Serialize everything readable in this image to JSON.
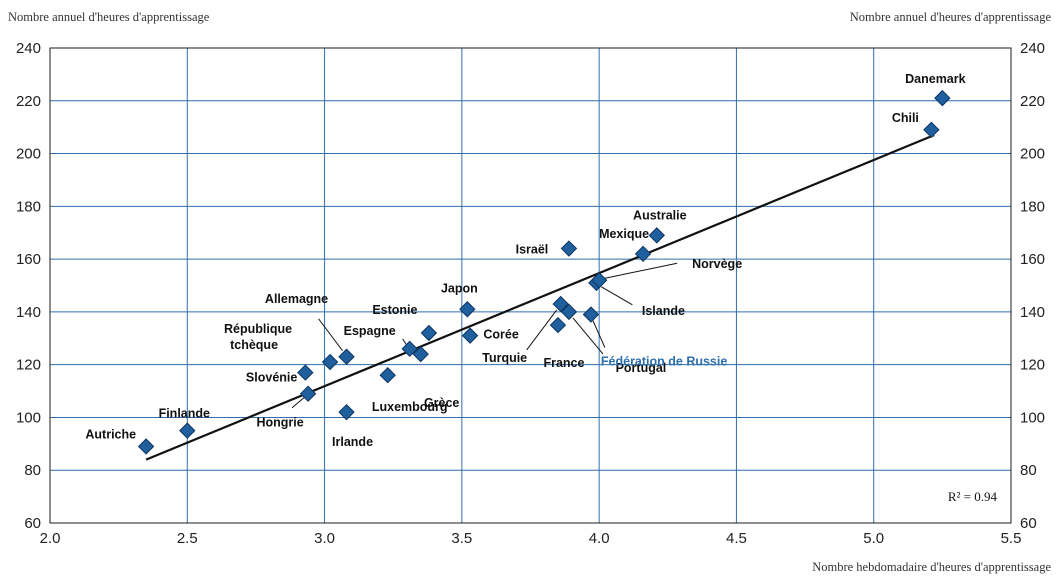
{
  "chart_data": {
    "type": "scatter",
    "ylabel_left": "Nombre annuel d'heures d'apprentissage",
    "ylabel_right": "Nombre annuel d'heures d'apprentissage",
    "xlabel": "Nombre hebdomadaire d'heures d'apprentissage",
    "xlim": [
      2.0,
      5.5
    ],
    "ylim": [
      60,
      240
    ],
    "x_ticks": [
      "2.0",
      "2.5",
      "3.0",
      "3.5",
      "4.0",
      "4.5",
      "5.0",
      "5.5"
    ],
    "y_ticks": [
      "60",
      "80",
      "100",
      "120",
      "140",
      "160",
      "180",
      "200",
      "220",
      "240"
    ],
    "grid": true,
    "marker_color": "#1f5f9e",
    "highlight_color": "#2e6fad",
    "r_squared": "R² = 0.94",
    "trendline": {
      "x": [
        2.35,
        5.22
      ],
      "y": [
        84,
        207
      ]
    },
    "points": [
      {
        "label": "Autriche",
        "x": 2.35,
        "y": 89
      },
      {
        "label": "Finlande",
        "x": 2.5,
        "y": 95
      },
      {
        "label": "Hongrie",
        "x": 2.94,
        "y": 109
      },
      {
        "label": "Slovénie",
        "x": 2.93,
        "y": 117
      },
      {
        "label": "République tchèque",
        "x": 3.02,
        "y": 121
      },
      {
        "label": "Allemagne",
        "x": 3.08,
        "y": 123
      },
      {
        "label": "Irlande",
        "x": 3.08,
        "y": 102
      },
      {
        "label": "Luxembourg",
        "x": 3.23,
        "y": 116
      },
      {
        "label": "Espagne",
        "x": 3.31,
        "y": 126
      },
      {
        "label": "Grèce",
        "x": 3.35,
        "y": 124
      },
      {
        "label": "Estonie",
        "x": 3.38,
        "y": 132
      },
      {
        "label": "Japon",
        "x": 3.52,
        "y": 141
      },
      {
        "label": "Corée",
        "x": 3.53,
        "y": 131
      },
      {
        "label": "Turquie",
        "x": 3.86,
        "y": 143
      },
      {
        "label": "France",
        "x": 3.85,
        "y": 135
      },
      {
        "label": "Portugal",
        "x": 3.89,
        "y": 140
      },
      {
        "label": "Fédération de Russie",
        "x": 3.97,
        "y": 139,
        "highlight": true
      },
      {
        "label": "Israël",
        "x": 3.89,
        "y": 164
      },
      {
        "label": "Islande",
        "x": 3.99,
        "y": 151
      },
      {
        "label": "Norvège",
        "x": 4.0,
        "y": 152
      },
      {
        "label": "Mexique",
        "x": 4.16,
        "y": 162
      },
      {
        "label": "Australie",
        "x": 4.21,
        "y": 169
      },
      {
        "label": "Chili",
        "x": 5.21,
        "y": 209
      },
      {
        "label": "Danemark",
        "x": 5.25,
        "y": 221
      }
    ]
  }
}
